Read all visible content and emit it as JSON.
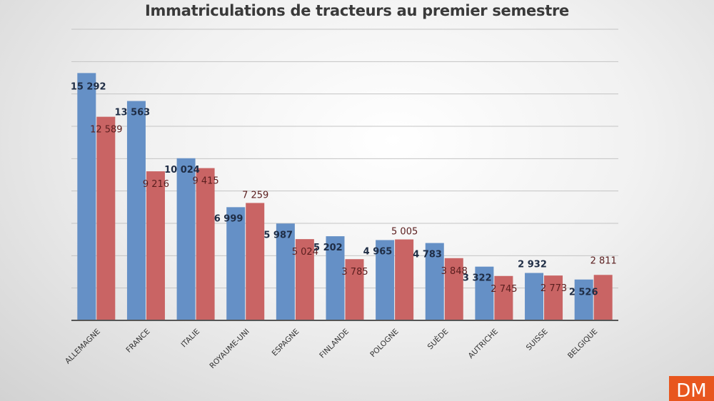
{
  "chart_data": {
    "type": "bar",
    "title": "Immatriculations  de tracteurs au premier semestre",
    "categories": [
      "ALLEMAGNE",
      "FRANCE",
      "ITALIE",
      "ROYAUME-UNI",
      "ESPAGNE",
      "FINLANDE",
      "POLOGNE",
      "SUÈDE",
      "AUTRICHE",
      "SUISSE",
      "BELGIQUE"
    ],
    "series": [
      {
        "values": [
          15292,
          13563,
          10024,
          6999,
          5987,
          5202,
          4965,
          4783,
          3322,
          2932,
          2526
        ],
        "labels": [
          "15 292",
          "13 563",
          "10 024",
          "6 999",
          "5 987",
          "5 202",
          "4 965",
          "4 783",
          "3 322",
          "2 932",
          "2 526"
        ],
        "color": "#6590c6",
        "label_color": "#1f2d45"
      },
      {
        "values": [
          12589,
          9216,
          9415,
          7259,
          5024,
          3785,
          5005,
          3848,
          2745,
          2773,
          2811
        ],
        "labels": [
          "12 589",
          "9 216",
          "9 415",
          "7 259",
          "5 024",
          "3 785",
          "5 005",
          "3 848",
          "2 745",
          "2 773",
          "2 811"
        ],
        "color": "#c96464",
        "label_color": "#5a1e1e"
      }
    ],
    "ylim": [
      0,
      18000
    ],
    "ytick_step": 2000,
    "grid": true,
    "yaxis_labels": false,
    "legend": "none"
  },
  "logo": {
    "text": "DM",
    "color": "#e8561e"
  }
}
